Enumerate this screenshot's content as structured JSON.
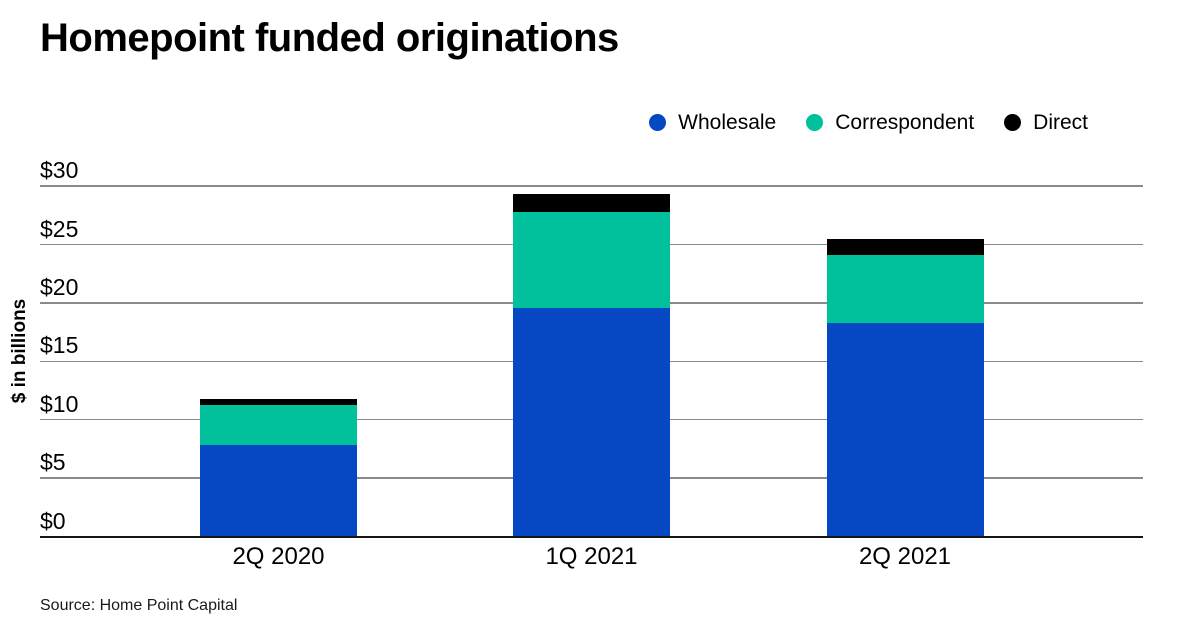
{
  "header": {
    "title": "Homepoint funded originations"
  },
  "y_axis": {
    "label": "$ in billions"
  },
  "footer": {
    "source": "Source: Home Point Capital"
  },
  "chart_data": {
    "type": "bar",
    "stacked": true,
    "title": "Homepoint funded originations",
    "ylabel": "$ in billions",
    "ylim": [
      0,
      30
    ],
    "yticks": [
      0,
      5,
      10,
      15,
      20,
      25,
      30
    ],
    "ytick_labels": [
      "$0",
      "$5",
      "$10",
      "$15",
      "$20",
      "$25",
      "$30"
    ],
    "grid": true,
    "legend_position": "top-right",
    "categories": [
      "2Q 2020",
      "1Q 2021",
      "2Q 2021"
    ],
    "series": [
      {
        "name": "Wholesale",
        "color": "#0647C4",
        "values": [
          7.8,
          19.6,
          18.3
        ]
      },
      {
        "name": "Correspondent",
        "color": "#00C19C",
        "values": [
          3.5,
          8.2,
          5.8
        ]
      },
      {
        "name": "Direct",
        "color": "#000000",
        "values": [
          0.45,
          1.5,
          1.4
        ]
      }
    ],
    "totals": [
      11.75,
      29.3,
      25.5
    ],
    "source": "Source: Home Point Capital"
  }
}
